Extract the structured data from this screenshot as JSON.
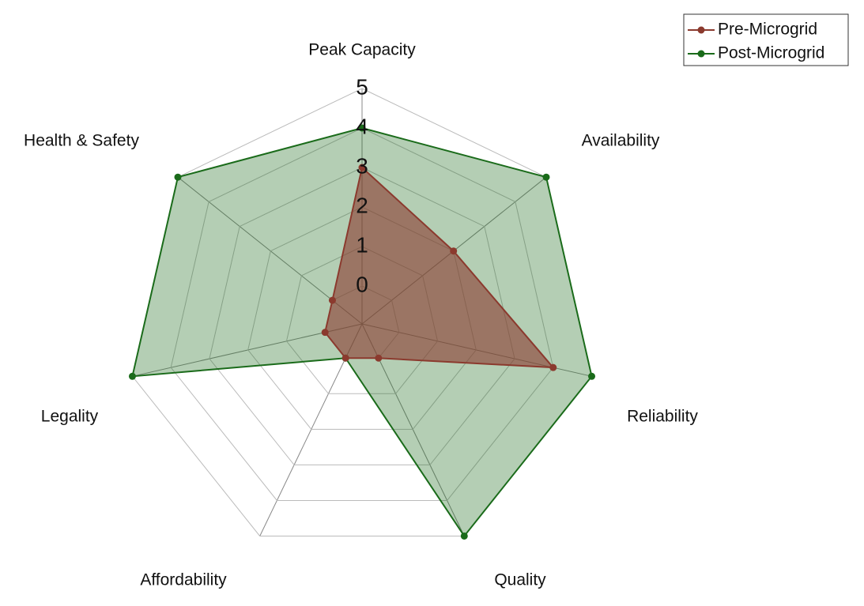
{
  "chart_data": {
    "type": "radar",
    "categories": [
      "Peak Capacity",
      "Availability",
      "Reliability",
      "Quality",
      "Affordability",
      "Legality",
      "Health & Safety"
    ],
    "series": [
      {
        "name": "Pre-Microgrid",
        "color": "#8b3a2e",
        "values": [
          3,
          2,
          4,
          0,
          0,
          0,
          0
        ]
      },
      {
        "name": "Post-Microgrid",
        "color": "#1a6b1a",
        "values": [
          4,
          5,
          5,
          5,
          0,
          5,
          5
        ]
      }
    ],
    "ylim": [
      0,
      5
    ],
    "yticks": [
      0,
      1,
      2,
      3,
      4,
      5
    ],
    "grid": true,
    "legend": "upper right"
  }
}
